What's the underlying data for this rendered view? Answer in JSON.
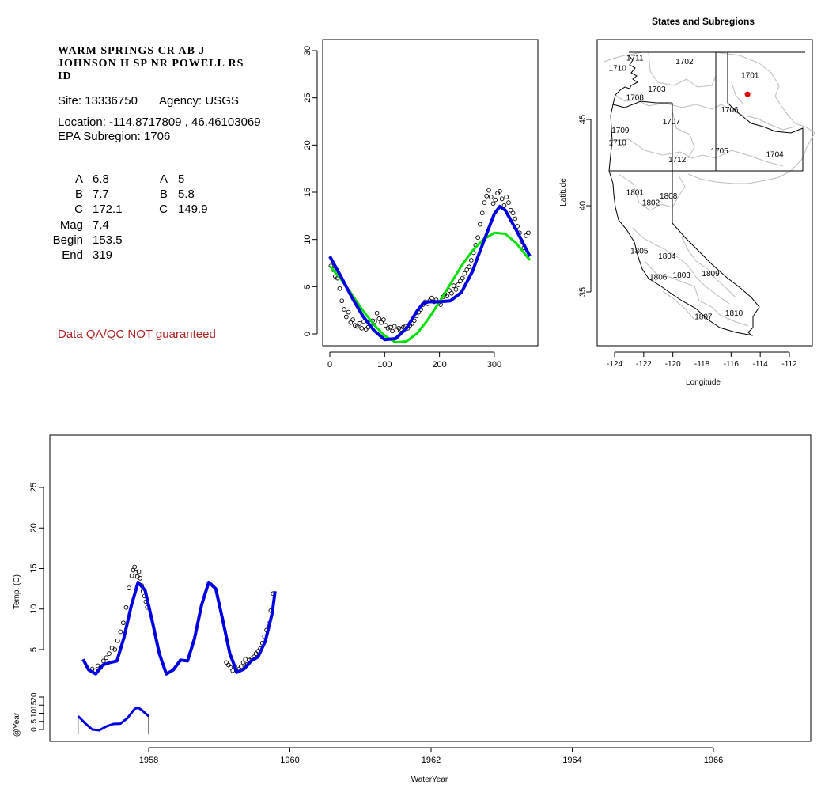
{
  "site_header": {
    "station_name_lines": [
      "WARM SPRINGS CR AB J",
      "JOHNSON H SP NR POWELL RS",
      "ID"
    ],
    "site_line": "Site: 13336750",
    "agency_line": "Agency: USGS",
    "location_line": "Location: -114.8717809 , 46.46103069",
    "subregion_line": "EPA Subregion: 1706"
  },
  "params": {
    "left": [
      {
        "label": "A",
        "value": "6.8"
      },
      {
        "label": "B",
        "value": "7.7"
      },
      {
        "label": "C",
        "value": "172.1"
      },
      {
        "label": "Mag",
        "value": "7.4"
      },
      {
        "label": "Begin",
        "value": "153.5"
      },
      {
        "label": "End",
        "value": "319"
      }
    ],
    "right": [
      {
        "label": "A",
        "value": "5"
      },
      {
        "label": "B",
        "value": "5.8"
      },
      {
        "label": "C",
        "value": "149.9"
      }
    ]
  },
  "qa_note": "Data QA/QC NOT guaranteed",
  "colors": {
    "green_fit": "#00e000",
    "blue_fit": "#0000e0",
    "site_marker": "#e00000",
    "qa_text": "#b22222"
  },
  "chart_data": [
    {
      "id": "seasonal",
      "type": "scatter",
      "xlim": [
        0,
        365
      ],
      "ylim": [
        0,
        30
      ],
      "x_ticks": [
        0,
        100,
        200,
        300
      ],
      "y_ticks": [
        0,
        5,
        10,
        15,
        20,
        25,
        30
      ],
      "xlabel": "",
      "ylabel": "",
      "observations": {
        "x": [
          2,
          6,
          10,
          14,
          18,
          22,
          26,
          30,
          34,
          38,
          42,
          46,
          50,
          54,
          58,
          62,
          66,
          70,
          74,
          78,
          82,
          86,
          90,
          94,
          98,
          102,
          106,
          110,
          114,
          118,
          122,
          126,
          130,
          134,
          138,
          142,
          146,
          150,
          154,
          158,
          162,
          166,
          170,
          174,
          178,
          182,
          186,
          190,
          194,
          198,
          202,
          206,
          210,
          214,
          218,
          222,
          226,
          230,
          234,
          238,
          242,
          246,
          250,
          254,
          258,
          262,
          266,
          270,
          274,
          278,
          282,
          286,
          290,
          294,
          298,
          302,
          306,
          310,
          314,
          318,
          322,
          326,
          330,
          334,
          338,
          342,
          346,
          350,
          354,
          358,
          362
        ],
        "y": [
          7.2,
          6.8,
          6.1,
          5.9,
          4.8,
          3.5,
          2.6,
          1.8,
          2.3,
          1.2,
          1.5,
          0.9,
          0.8,
          1.1,
          0.6,
          1.3,
          0.5,
          0.7,
          1.1,
          1.4,
          1.3,
          2.2,
          1.6,
          1.2,
          1.5,
          0.9,
          0.6,
          0.7,
          0.3,
          0.8,
          0.4,
          0.6,
          0.5,
          0.7,
          0.8,
          0.6,
          0.9,
          1.1,
          1.4,
          1.9,
          2.3,
          2.6,
          3.1,
          3.4,
          3.2,
          3.5,
          3.8,
          3.4,
          3.6,
          3.3,
          3.1,
          3.9,
          4.2,
          4.0,
          4.6,
          4.3,
          5.1,
          4.7,
          5.2,
          5.6,
          5.9,
          6.4,
          6.8,
          7.1,
          7.8,
          8.6,
          9.4,
          10.2,
          11.6,
          12.8,
          13.9,
          14.6,
          15.2,
          14.5,
          13.8,
          14.2,
          14.9,
          15.1,
          14.3,
          13.6,
          14.5,
          13.9,
          13.1,
          12.8,
          12.2,
          11.4,
          10.7,
          9.8,
          9.1,
          10.4,
          10.7
        ]
      },
      "fits": [
        {
          "name": "",
          "color": "#00e000",
          "x": [
            0,
            20,
            40,
            60,
            80,
            100,
            120,
            140,
            160,
            180,
            200,
            220,
            240,
            260,
            280,
            300,
            320,
            340,
            365
          ],
          "y": [
            7.2,
            5.8,
            4.2,
            2.5,
            1.0,
            -0.2,
            -0.9,
            -0.8,
            0.1,
            1.6,
            3.4,
            5.3,
            7.2,
            8.8,
            10.0,
            10.7,
            10.6,
            9.6,
            7.8
          ]
        },
        {
          "name": "",
          "color": "#0000e0",
          "x": [
            0,
            20,
            40,
            60,
            80,
            100,
            120,
            140,
            160,
            170,
            180,
            200,
            220,
            240,
            260,
            280,
            300,
            310,
            320,
            340,
            365
          ],
          "y": [
            8.2,
            6.1,
            3.9,
            1.9,
            0.4,
            -0.6,
            -0.5,
            0.6,
            2.5,
            3.2,
            3.4,
            3.4,
            3.5,
            4.4,
            6.6,
            9.7,
            12.7,
            13.5,
            13.1,
            11.0,
            8.2
          ]
        }
      ]
    },
    {
      "id": "map",
      "type": "map",
      "title": "States and Subregions",
      "xlabel": "Longitude",
      "ylabel": "Latitude",
      "xlim": [
        -125.5,
        -110.8
      ],
      "ylim": [
        32.2,
        49.9
      ],
      "x_ticks": [
        -124,
        -122,
        -120,
        -118,
        -116,
        -114,
        -112
      ],
      "y_ticks": [
        35,
        40,
        45
      ],
      "subregion_labels": [
        {
          "text": "1701",
          "lon": -114.7,
          "lat": 47.6
        },
        {
          "text": "1702",
          "lon": -119.2,
          "lat": 48.4
        },
        {
          "text": "1703",
          "lon": -121.1,
          "lat": 46.8
        },
        {
          "text": "1704",
          "lon": -113.0,
          "lat": 43.0
        },
        {
          "text": "1705",
          "lon": -116.8,
          "lat": 43.2
        },
        {
          "text": "1706",
          "lon": -116.1,
          "lat": 45.6
        },
        {
          "text": "1707",
          "lon": -120.1,
          "lat": 44.9
        },
        {
          "text": "1708",
          "lon": -122.6,
          "lat": 46.3
        },
        {
          "text": "1709",
          "lon": -123.6,
          "lat": 44.4
        },
        {
          "text": "1710",
          "lon": -123.8,
          "lat": 48.0
        },
        {
          "text": "1711",
          "lon": -122.6,
          "lat": 48.6
        },
        {
          "text": "1710",
          "lon": -123.8,
          "lat": 43.7
        },
        {
          "text": "1712",
          "lon": -119.7,
          "lat": 42.7
        },
        {
          "text": "1801",
          "lon": -122.6,
          "lat": 40.8
        },
        {
          "text": "1802",
          "lon": -121.5,
          "lat": 40.2
        },
        {
          "text": "1808",
          "lon": -120.3,
          "lat": 40.6
        },
        {
          "text": "1805",
          "lon": -122.3,
          "lat": 37.4
        },
        {
          "text": "1804",
          "lon": -120.4,
          "lat": 37.1
        },
        {
          "text": "1806",
          "lon": -121.0,
          "lat": 35.9
        },
        {
          "text": "1803",
          "lon": -119.4,
          "lat": 36.0
        },
        {
          "text": "1809",
          "lon": -117.4,
          "lat": 36.1
        },
        {
          "text": "1807",
          "lon": -117.9,
          "lat": 33.6
        },
        {
          "text": "1810",
          "lon": -115.8,
          "lat": 33.8
        }
      ],
      "site": {
        "lon": -114.8717809,
        "lat": 46.46103069
      }
    },
    {
      "id": "timeseries",
      "type": "line",
      "xlabel": "WaterYear",
      "ylabel": "Temp. (C)",
      "ylabel2": "@Year",
      "xlim": [
        1956.5,
        1967.4
      ],
      "x_ticks": [
        1958,
        1960,
        1962,
        1964,
        1966
      ],
      "y_ticks": [
        5,
        10,
        15,
        20,
        25
      ],
      "y2_ticks": [
        0,
        5,
        10,
        15,
        20
      ],
      "observations": {
        "x": [
          1957.2,
          1957.24,
          1957.28,
          1957.32,
          1957.36,
          1957.4,
          1957.44,
          1957.48,
          1957.52,
          1957.56,
          1957.6,
          1957.64,
          1957.68,
          1957.72,
          1957.76,
          1957.78,
          1957.8,
          1957.82,
          1957.84,
          1957.86,
          1957.88,
          1957.9,
          1957.92,
          1957.94,
          1957.96,
          1957.98,
          1959.1,
          1959.13,
          1959.16,
          1959.19,
          1959.22,
          1959.25,
          1959.28,
          1959.31,
          1959.34,
          1959.37,
          1959.4,
          1959.43,
          1959.46,
          1959.49,
          1959.52,
          1959.55,
          1959.58,
          1959.61,
          1959.64,
          1959.67,
          1959.7,
          1959.73,
          1959.76
        ],
        "y": [
          2.6,
          2.4,
          3.0,
          2.8,
          3.6,
          4.0,
          4.5,
          5.2,
          5.0,
          6.1,
          7.2,
          8.3,
          10.2,
          12.6,
          14.1,
          14.8,
          15.2,
          14.5,
          14.0,
          14.6,
          13.8,
          12.9,
          12.2,
          11.6,
          10.9,
          10.2,
          3.4,
          3.1,
          2.8,
          2.4,
          2.9,
          2.3,
          2.6,
          2.9,
          3.4,
          3.8,
          3.2,
          3.7,
          3.9,
          4.1,
          4.5,
          4.8,
          5.1,
          5.8,
          6.6,
          7.4,
          8.2,
          9.8,
          11.9
        ]
      },
      "fit": {
        "color": "#0000e0",
        "x": [
          1957.07,
          1957.15,
          1957.25,
          1957.35,
          1957.45,
          1957.55,
          1957.65,
          1957.75,
          1957.85,
          1957.95,
          1958.05,
          1958.15,
          1958.25,
          1958.35,
          1958.45,
          1958.55,
          1958.65,
          1958.75,
          1958.85,
          1958.95,
          1959.05,
          1959.15,
          1959.25,
          1959.35,
          1959.45,
          1959.55,
          1959.65,
          1959.75,
          1959.79
        ],
        "y": [
          3.8,
          2.5,
          2.0,
          3.1,
          3.4,
          3.6,
          6.5,
          10.3,
          13.3,
          12.3,
          8.5,
          4.5,
          2.0,
          2.5,
          3.7,
          3.6,
          6.4,
          10.5,
          13.3,
          12.5,
          8.6,
          4.5,
          2.2,
          2.6,
          3.6,
          4.1,
          6.0,
          9.5,
          12.2
        ]
      },
      "year_fit": {
        "color": "#0000e0",
        "x": [
          1957.0,
          1957.1,
          1957.2,
          1957.3,
          1957.4,
          1957.5,
          1957.6,
          1957.7,
          1957.8,
          1957.85,
          1957.9,
          1958.0
        ],
        "y": [
          8.2,
          3.8,
          0.0,
          -0.5,
          1.9,
          3.4,
          3.6,
          7.0,
          12.7,
          13.5,
          12.0,
          8.2
        ]
      }
    }
  ]
}
